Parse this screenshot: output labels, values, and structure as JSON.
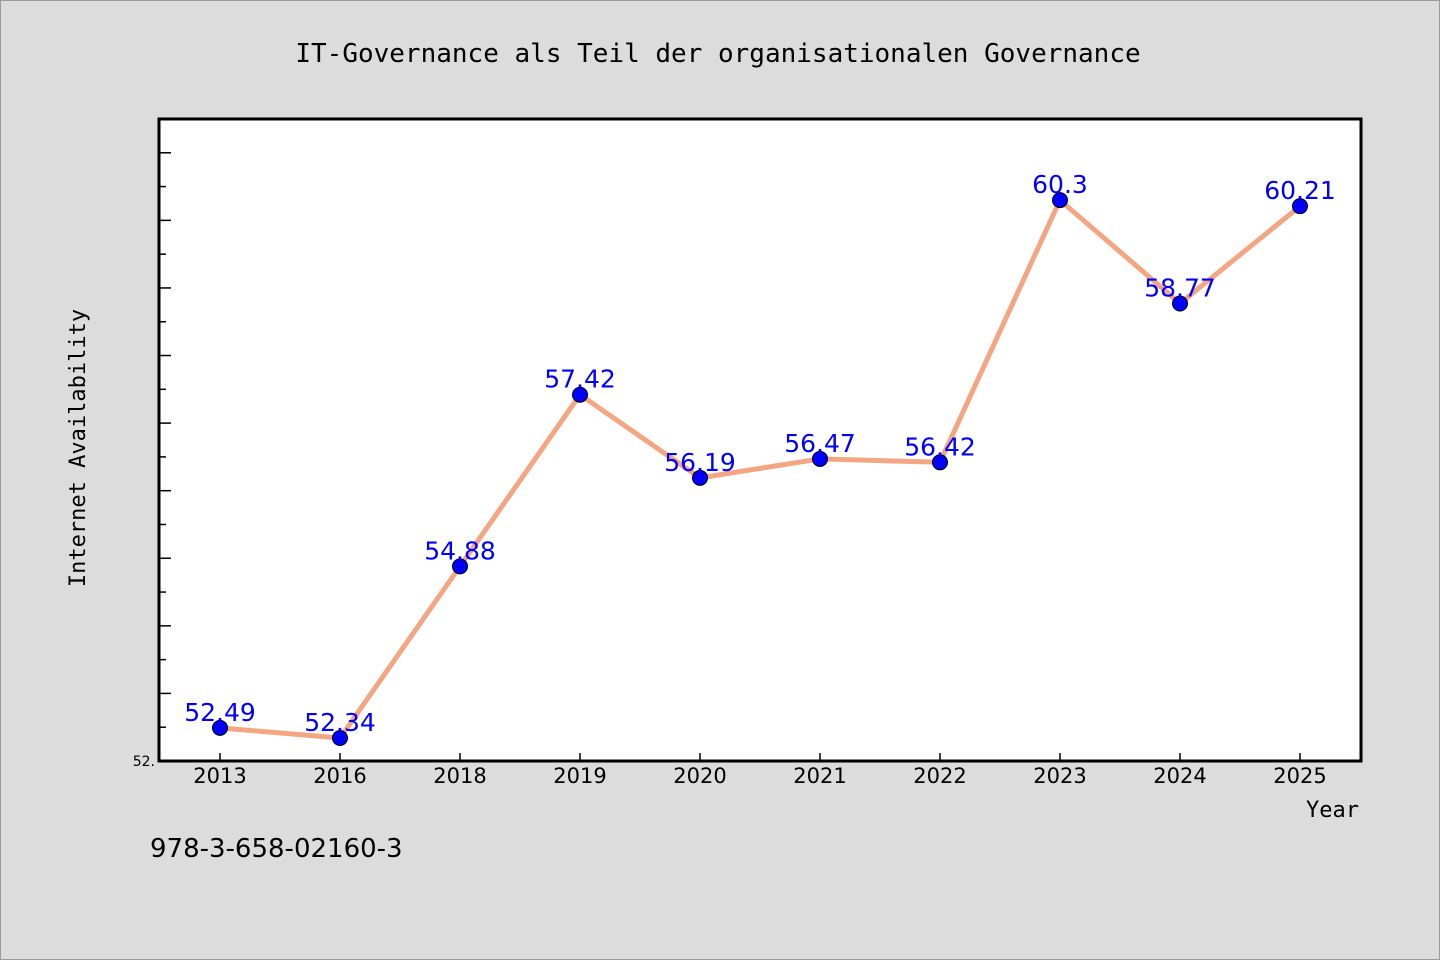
{
  "chart_data": {
    "type": "line",
    "title": "IT-Governance als Teil der organisationalen Governance",
    "xlabel": "Year",
    "ylabel": "Internet Availability",
    "categories": [
      "2013",
      "2016",
      "2018",
      "2019",
      "2020",
      "2021",
      "2022",
      "2023",
      "2024",
      "2025"
    ],
    "values": [
      52.49,
      52.34,
      54.88,
      57.42,
      56.19,
      56.47,
      56.42,
      60.3,
      58.77,
      60.21
    ],
    "data_labels": [
      "52.49",
      "52.34",
      "54.88",
      "57.42",
      "56.19",
      "56.47",
      "56.42",
      "60.3",
      "58.77",
      "60.21"
    ],
    "y_tick_label": "52.",
    "ylim": [
      52.0,
      61.5
    ],
    "grid": false,
    "colors": {
      "line": "#f4a582",
      "marker": "#0000ff",
      "label": "#0000ff"
    }
  },
  "footer_text": "978-3-658-02160-3"
}
